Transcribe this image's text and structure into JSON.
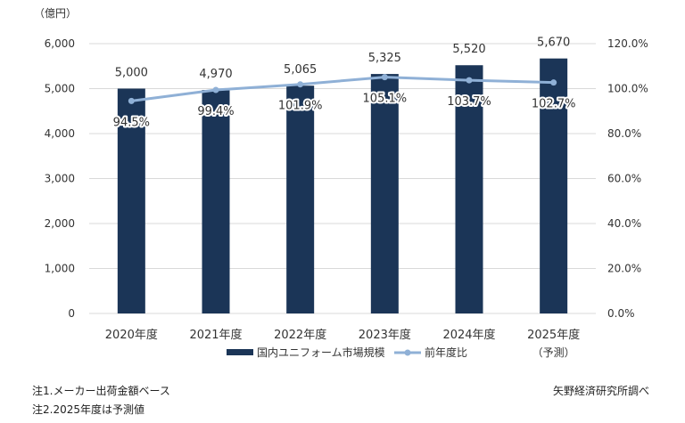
{
  "chart_data": {
    "type": "bar",
    "categories": [
      "2020年度",
      "2021年度",
      "2022年度",
      "2023年度",
      "2024年度",
      "2025年度"
    ],
    "forecast_note": "（予測）",
    "y_unit_label": "（億円）",
    "ylim": [
      0,
      6000
    ],
    "y_ticks": [
      0,
      1000,
      2000,
      3000,
      4000,
      5000,
      6000
    ],
    "y_tick_labels": [
      "0",
      "1,000",
      "2,000",
      "3,000",
      "4,000",
      "5,000",
      "6,000"
    ],
    "y2lim": [
      0,
      120
    ],
    "y2_ticks": [
      0,
      20,
      40,
      60,
      80,
      100,
      120
    ],
    "y2_tick_labels": [
      "0.0%",
      "20.0%",
      "40.0%",
      "60.0%",
      "80.0%",
      "100.0%",
      "120.0%"
    ],
    "series": [
      {
        "name": "国内ユニフォーム市場規模",
        "type": "bar",
        "axis": "left",
        "color": "#1b3557",
        "values": [
          5000,
          4970,
          5065,
          5325,
          5520,
          5670
        ],
        "labels": [
          "5,000",
          "4,970",
          "5,065",
          "5,325",
          "5,520",
          "5,670"
        ]
      },
      {
        "name": "前年度比",
        "type": "line",
        "axis": "right",
        "color": "#8fb0d6",
        "values": [
          94.5,
          99.4,
          101.9,
          105.1,
          103.7,
          102.7
        ],
        "labels": [
          "94.5%",
          "99.4%",
          "101.9%",
          "105.1%",
          "103.7%",
          "102.7%"
        ]
      }
    ],
    "grid": true,
    "gridline_color": "#d9d9d9",
    "legend_position": "bottom"
  },
  "notes": {
    "note1": "注1.メーカー出荷金額ベース",
    "note2": "注2.2025年度は予測値",
    "source": "矢野経済研究所調べ"
  }
}
